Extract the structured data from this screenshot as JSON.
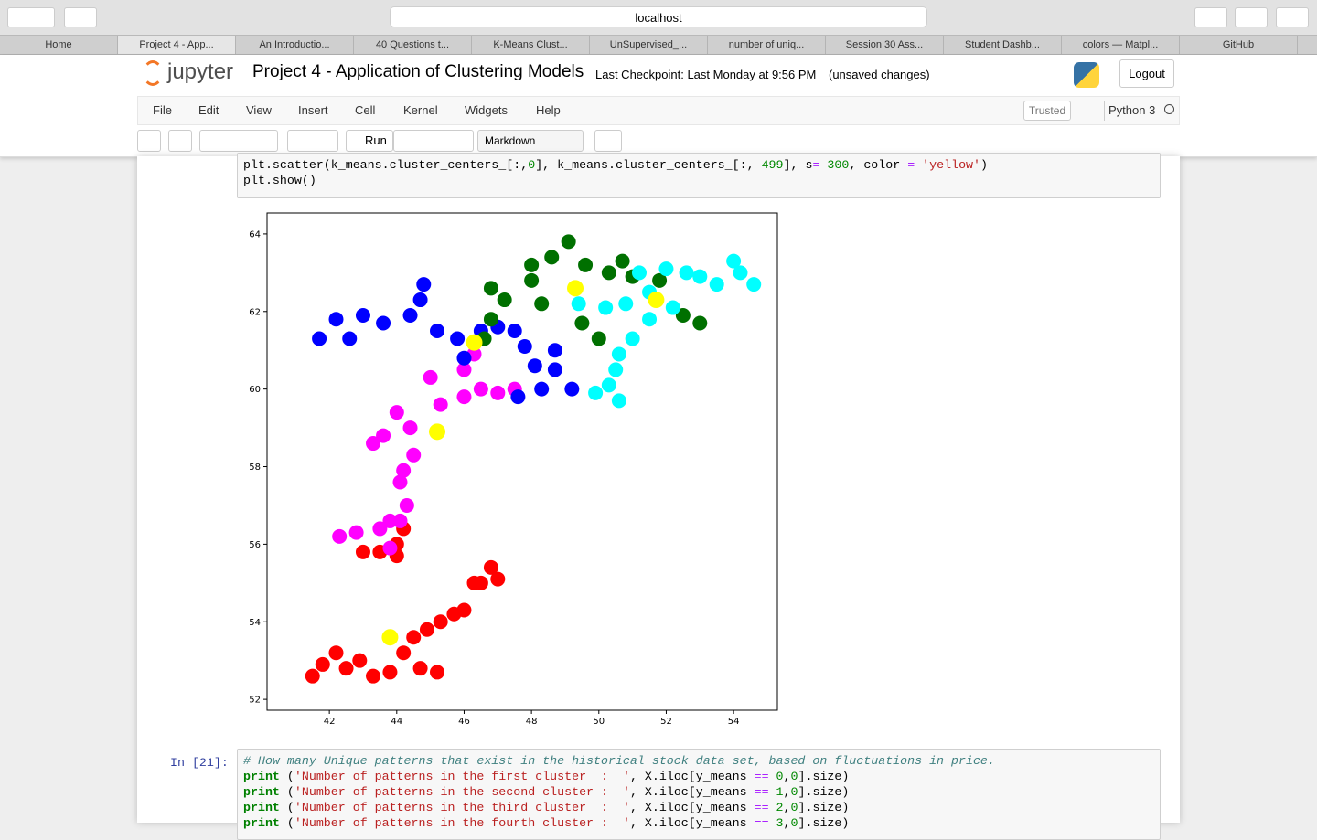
{
  "browser": {
    "url": "localhost",
    "tabs": [
      "Home",
      "Project 4 - App...",
      "An Introductio...",
      "40 Questions t...",
      "K-Means Clust...",
      "UnSupervised_...",
      "number of uniq...",
      "Session 30 Ass...",
      "Student Dashb...",
      "colors — Matpl...",
      "GitHub"
    ]
  },
  "header": {
    "logo": "jupyter",
    "title": "Project 4 - Application of Clustering Models",
    "checkpoint": "Last Checkpoint: Last Monday at 9:56 PM",
    "status": "(unsaved changes)",
    "logout": "Logout"
  },
  "menu": {
    "items": [
      "File",
      "Edit",
      "View",
      "Insert",
      "Cell",
      "Kernel",
      "Widgets",
      "Help"
    ],
    "trusted": "Trusted",
    "kernel": "Python 3"
  },
  "toolbar": {
    "run": "Run",
    "cell_type": "Markdown"
  },
  "cells": [
    {
      "lines": [
        "plt.scatter(k_means.cluster_centers_[:,0], k_means.cluster_centers_[:, 499], s= 300, color = 'yellow')",
        "plt.show()"
      ]
    },
    {
      "prompt": "In [21]:",
      "lines": [
        "# How many Unique patterns that exist in the historical stock data set, based on fluctuations in price.",
        "print ('Number of patterns in the first cluster  :  ', X.iloc[y_means == 0,0].size)",
        "print ('Number of patterns in the second cluster :  ', X.iloc[y_means == 1,0].size)",
        "print ('Number of patterns in the third cluster  :  ', X.iloc[y_means == 2,0].size)",
        "print ('Number of patterns in the fourth cluster :  ', X.iloc[y_means == 3,0].size)"
      ]
    }
  ],
  "chart_data": {
    "type": "scatter",
    "xlim": [
      40.15,
      55.3
    ],
    "ylim": [
      51.72,
      64.54
    ],
    "xticks": [
      42,
      44,
      46,
      48,
      50,
      52,
      54
    ],
    "yticks": [
      52,
      54,
      56,
      58,
      60,
      62,
      64
    ],
    "series": [
      {
        "color": "#ff0000",
        "x": [
          41.5,
          41.8,
          42.2,
          42.5,
          42.9,
          43.3,
          43.8,
          44.2,
          44.5,
          44.9,
          45.3,
          45.7,
          46.0,
          45.2,
          44.7,
          46.5,
          46.8,
          47.0,
          46.3,
          43.0,
          43.5,
          44.0,
          44.2,
          44.0
        ],
        "y": [
          52.6,
          52.9,
          53.2,
          52.8,
          53.0,
          52.6,
          52.7,
          53.2,
          53.6,
          53.8,
          54.0,
          54.2,
          54.3,
          52.7,
          52.8,
          55.0,
          55.4,
          55.1,
          55.0,
          55.8,
          55.8,
          56.0,
          56.4,
          55.7
        ]
      },
      {
        "color": "#ff00ff",
        "x": [
          45.0,
          46.0,
          46.5,
          47.0,
          47.5,
          46.0,
          45.3,
          44.4,
          43.6,
          43.3,
          44.0,
          44.2,
          44.1,
          44.3,
          44.1,
          43.5,
          42.8,
          42.3,
          43.8,
          43.8,
          46.3,
          44.5
        ],
        "y": [
          60.3,
          60.5,
          60.0,
          59.9,
          60.0,
          59.8,
          59.6,
          59.0,
          58.8,
          58.6,
          59.4,
          57.9,
          57.6,
          57.0,
          56.6,
          56.4,
          56.3,
          56.2,
          55.9,
          56.6,
          60.9,
          58.3
        ]
      },
      {
        "color": "#0000ff",
        "x": [
          41.7,
          42.2,
          43.0,
          43.6,
          44.4,
          44.7,
          44.8,
          45.2,
          45.8,
          46.5,
          47.0,
          47.5,
          47.8,
          48.1,
          48.3,
          47.6,
          48.7,
          49.2,
          48.7,
          46.0,
          42.6
        ],
        "y": [
          61.3,
          61.8,
          61.9,
          61.7,
          61.9,
          62.3,
          62.7,
          61.5,
          61.3,
          61.5,
          61.6,
          61.5,
          61.1,
          60.6,
          60.0,
          59.8,
          60.5,
          60.0,
          61.0,
          60.8,
          61.3
        ]
      },
      {
        "color": "#007000",
        "x": [
          48.0,
          48.6,
          49.1,
          49.6,
          50.3,
          51.0,
          50.7,
          48.3,
          49.5,
          50.0,
          47.2,
          46.8,
          46.8,
          46.6,
          51.8,
          52.5,
          53.0,
          48.0
        ],
        "y": [
          62.8,
          63.4,
          63.8,
          63.2,
          63.0,
          62.9,
          63.3,
          62.2,
          61.7,
          61.3,
          62.3,
          62.6,
          61.8,
          61.3,
          62.8,
          61.9,
          61.7,
          63.2
        ]
      },
      {
        "color": "#00ffff",
        "x": [
          51.2,
          52.0,
          52.6,
          53.0,
          53.5,
          54.2,
          54.6,
          54.0,
          50.2,
          50.8,
          49.4,
          51.5,
          52.2,
          51.0,
          50.6,
          50.5,
          50.3,
          50.6,
          49.9,
          51.5
        ],
        "y": [
          63.0,
          63.1,
          63.0,
          62.9,
          62.7,
          63.0,
          62.7,
          63.3,
          62.1,
          62.2,
          62.2,
          61.8,
          62.1,
          61.3,
          60.9,
          60.5,
          60.1,
          59.7,
          59.9,
          62.5
        ]
      },
      {
        "color": "#ffff00",
        "x": [
          49.3,
          51.7,
          46.3,
          45.2,
          43.8
        ],
        "y": [
          62.6,
          62.3,
          61.2,
          58.9,
          53.6
        ]
      }
    ]
  }
}
